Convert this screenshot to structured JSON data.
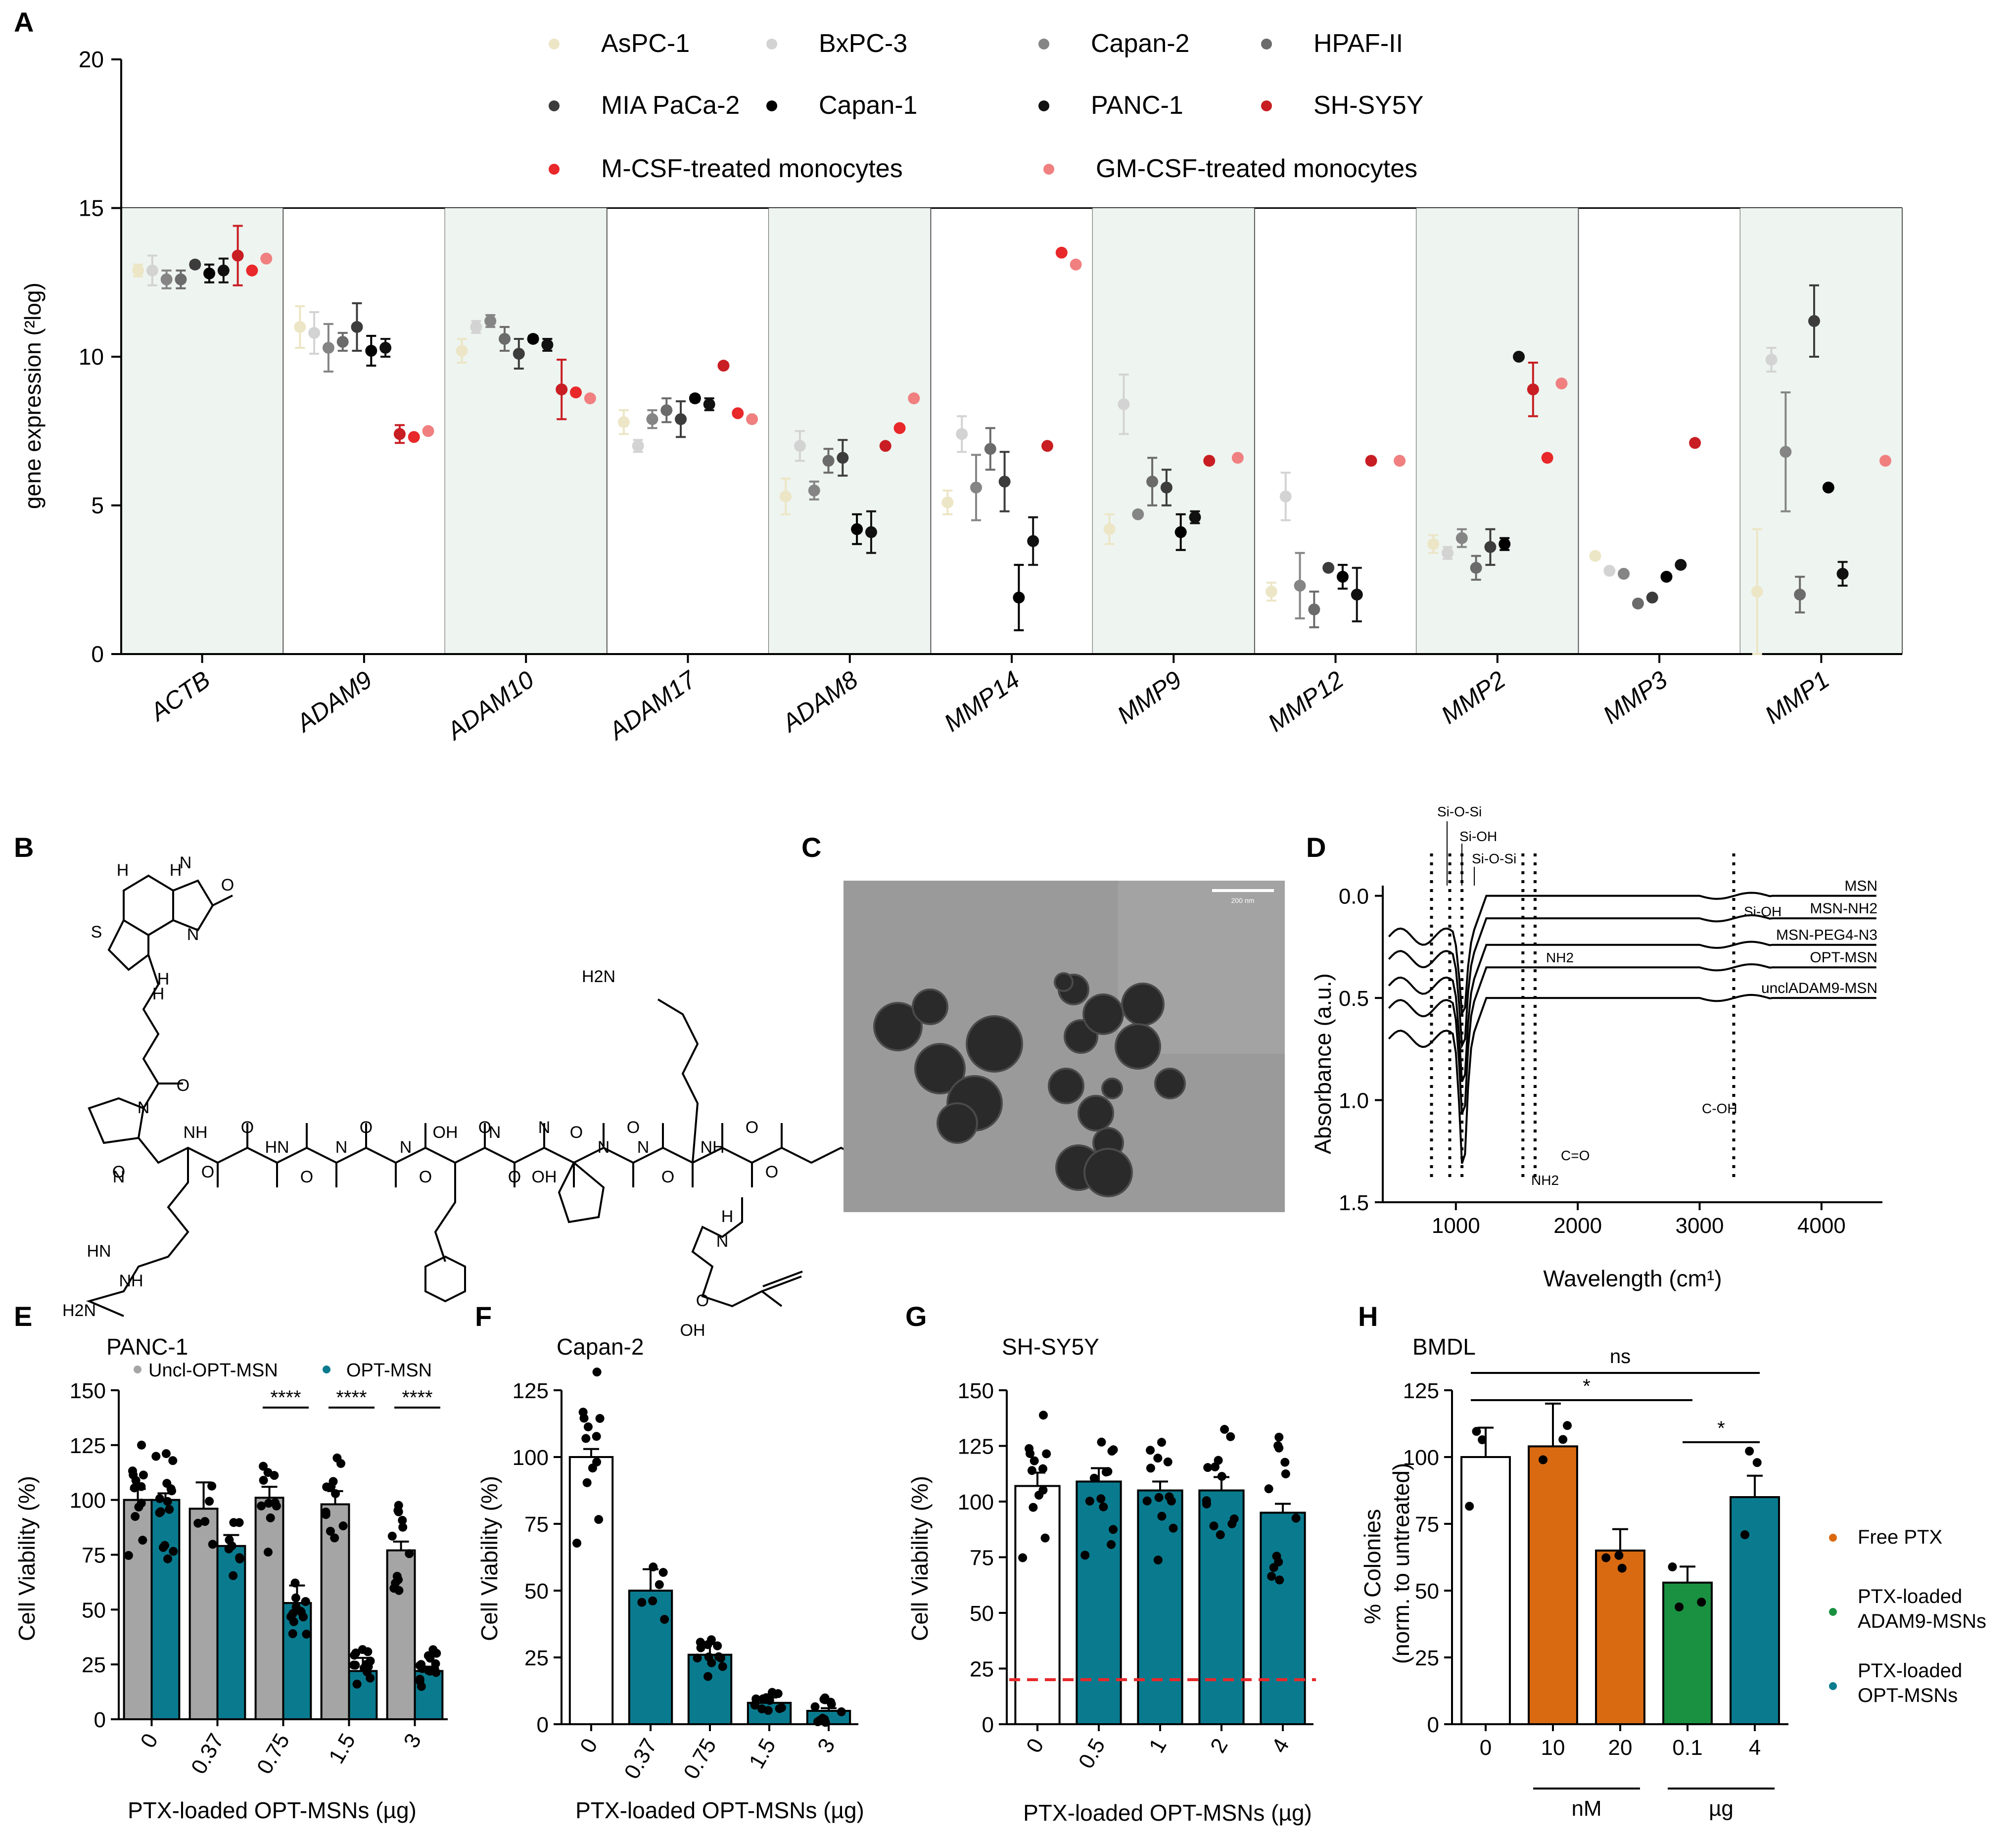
{
  "panel_labels": [
    "A",
    "B",
    "C",
    "D",
    "E",
    "F",
    "G",
    "H"
  ],
  "colors": {
    "AsPC-1": "#ece6c6",
    "BxPC-3": "#d3d3d3",
    "Capan-1": "#000000",
    "Capan-2": "#858585",
    "HPAF-II": "#6b6b6b",
    "MIA PaCa-2": "#3c3c3c",
    "PANC-1": "#111111",
    "SH-SY5Y": "#c81e23",
    "M-CSF-treated monocytes": "#e8282a",
    "GM-CSF-treated monocytes": "#f08080",
    "gray_bar": "#a5a5a5",
    "teal": "#0a7b8f",
    "orange": "#d96a12",
    "green": "#1a9140",
    "shade": "#eef4f0",
    "red_dash": "#e8282a"
  },
  "chart_data": [
    {
      "id": "A",
      "type": "scatter",
      "title": "",
      "ylabel": "gene expression (²log)",
      "xlabel": "",
      "ylim": [
        0,
        20
      ],
      "yticks": [
        0,
        5,
        10,
        15,
        20
      ],
      "categories": [
        "ACTB",
        "ADAM9",
        "ADAM10",
        "ADAM17",
        "ADAM8",
        "MMP14",
        "MMP9",
        "MMP12",
        "MMP2",
        "MMP3",
        "MMP1"
      ],
      "shaded_categories": [
        "ACTB",
        "ADAM10",
        "ADAM8",
        "MMP9",
        "MMP2",
        "MMP1"
      ],
      "legend_placement": "top",
      "series": [
        {
          "name": "AsPC-1",
          "values": [
            12.9,
            11.0,
            10.2,
            7.8,
            5.3,
            5.1,
            4.2,
            2.1,
            3.7,
            3.3,
            2.1
          ],
          "err": [
            0.2,
            0.7,
            0.4,
            0.4,
            0.6,
            0.4,
            0.5,
            0.3,
            0.3,
            0,
            2.1
          ]
        },
        {
          "name": "BxPC-3",
          "values": [
            12.9,
            10.8,
            11.0,
            7.0,
            7.0,
            7.4,
            8.4,
            5.3,
            3.4,
            2.8,
            9.9
          ],
          "err": [
            0.5,
            0.7,
            0.2,
            0.2,
            0.5,
            0.6,
            1.0,
            0.8,
            0.2,
            0,
            0.4
          ]
        },
        {
          "name": "Capan-2",
          "values": [
            12.6,
            10.3,
            11.2,
            7.9,
            5.5,
            5.6,
            4.7,
            2.3,
            3.9,
            2.7,
            6.8
          ],
          "err": [
            0.3,
            0.8,
            0.2,
            0.3,
            0.3,
            1.1,
            0,
            1.1,
            0.3,
            0,
            2.0
          ]
        },
        {
          "name": "HPAF-II",
          "values": [
            12.6,
            10.5,
            10.6,
            8.2,
            6.5,
            6.9,
            5.8,
            1.5,
            2.9,
            1.7,
            2.0
          ],
          "err": [
            0.3,
            0.3,
            0.4,
            0.4,
            0.4,
            0.7,
            0.8,
            0.6,
            0.4,
            0,
            0.6
          ]
        },
        {
          "name": "MIA PaCa-2",
          "values": [
            13.1,
            11.0,
            10.1,
            7.9,
            6.6,
            5.8,
            5.6,
            2.9,
            3.6,
            1.9,
            11.2
          ],
          "err": [
            0.1,
            0.8,
            0.5,
            0.6,
            0.6,
            1.0,
            0.6,
            0,
            0.6,
            0,
            1.2
          ]
        },
        {
          "name": "Capan-1",
          "values": [
            12.8,
            10.2,
            10.6,
            8.6,
            4.2,
            1.9,
            4.1,
            2.6,
            3.7,
            2.6,
            5.6
          ],
          "err": [
            0.3,
            0.5,
            0.1,
            0.1,
            0.5,
            1.1,
            0.6,
            0.4,
            0.2,
            0,
            0
          ]
        },
        {
          "name": "PANC-1",
          "values": [
            12.9,
            10.3,
            10.4,
            8.4,
            4.1,
            3.8,
            4.6,
            2.0,
            10.0,
            3.0,
            2.7
          ],
          "err": [
            0.4,
            0.3,
            0.2,
            0.2,
            0.7,
            0.8,
            0.2,
            0.9,
            0,
            0,
            0.4
          ]
        },
        {
          "name": "SH-SY5Y",
          "values": [
            13.4,
            7.4,
            8.9,
            9.7,
            7.0,
            7.0,
            6.5,
            6.5,
            8.9,
            7.1,
            null
          ],
          "err": [
            1.0,
            0.3,
            1.0,
            0,
            0,
            0,
            0,
            0,
            0.9,
            0,
            0
          ]
        },
        {
          "name": "M-CSF-treated monocytes",
          "values": [
            12.9,
            7.3,
            8.8,
            8.1,
            7.6,
            13.5,
            null,
            null,
            6.6,
            null,
            null
          ],
          "err": [
            0,
            0,
            0,
            0,
            0,
            0,
            0,
            0,
            0,
            0,
            0
          ]
        },
        {
          "name": "GM-CSF-treated monocytes",
          "values": [
            13.3,
            7.5,
            8.6,
            7.9,
            8.6,
            13.1,
            6.6,
            6.5,
            9.1,
            null,
            6.5
          ],
          "err": [
            0,
            0,
            0,
            0,
            0,
            0,
            0,
            0,
            0,
            0,
            0
          ]
        }
      ]
    },
    {
      "id": "D",
      "type": "line",
      "xlabel": "Wavelength (cm¹)",
      "ylabel": "Absorbance (a.u.)",
      "xlim": [
        400,
        4500
      ],
      "ylim": [
        1.5,
        -0.05
      ],
      "xticks": [
        1000,
        2000,
        3000,
        4000
      ],
      "yticks": [
        0.0,
        0.5,
        1.0,
        1.5
      ],
      "y_tick_labels": [
        "0.0",
        "0.5",
        "1.0",
        "1.5"
      ],
      "series": [
        {
          "name": "MSN",
          "offset": 0.0
        },
        {
          "name": "MSN-NH2",
          "offset": 0.11
        },
        {
          "name": "MSN-PEG4-N3",
          "offset": 0.24
        },
        {
          "name": "OPT-MSN",
          "offset": 0.35
        },
        {
          "name": "unclADAM9-MSN",
          "offset": 0.5
        }
      ],
      "dotted_x": [
        800,
        950,
        1050,
        1550,
        1650,
        3280
      ],
      "annotations": [
        "Si-O-Si",
        "Si-OH",
        "Si-O-Si",
        "NH2",
        "Si-OH",
        "C-OH",
        "C=O",
        "NH2"
      ]
    },
    {
      "id": "E",
      "type": "bar",
      "title": "PANC-1",
      "xlabel": "PTX-loaded OPT-MSNs (µg)",
      "ylabel": "Cell Viability (%)",
      "ylim": [
        0,
        150
      ],
      "yticks": [
        0,
        25,
        50,
        75,
        100,
        125,
        150
      ],
      "categories": [
        "0",
        "0.37",
        "0.75",
        "1.5",
        "3"
      ],
      "legend_placement": "top-right",
      "series": [
        {
          "name": "Uncl-OPT-MSN",
          "values": [
            100,
            96,
            101,
            98,
            77
          ],
          "err": [
            5,
            12,
            5,
            6,
            4
          ]
        },
        {
          "name": "OPT-MSN",
          "values": [
            100,
            79,
            53,
            22,
            22
          ],
          "err": [
            3,
            5,
            8,
            6,
            2
          ]
        }
      ],
      "significance": [
        "****",
        "****",
        "****"
      ]
    },
    {
      "id": "F",
      "type": "bar",
      "title": "Capan-2",
      "xlabel": "PTX-loaded OPT-MSNs (µg)",
      "ylabel": "Cell Viability (%)",
      "ylim": [
        0,
        125
      ],
      "yticks": [
        0,
        25,
        50,
        75,
        100,
        125
      ],
      "categories": [
        "0",
        "0.37",
        "0.75",
        "1.5",
        "3"
      ],
      "values": [
        100,
        50,
        26,
        8,
        5
      ],
      "err": [
        3,
        8,
        4,
        2,
        1
      ]
    },
    {
      "id": "G",
      "type": "bar",
      "title": "SH-SY5Y",
      "xlabel": "PTX-loaded OPT-MSNs (µg)",
      "ylabel": "Cell Viability (%)",
      "ylim": [
        0,
        150
      ],
      "yticks": [
        0,
        25,
        50,
        75,
        100,
        125,
        150
      ],
      "categories": [
        "0",
        "0.5",
        "1",
        "2",
        "4"
      ],
      "values": [
        107,
        109,
        105,
        105,
        95
      ],
      "err": [
        6,
        6,
        4,
        6,
        4
      ],
      "reference_line": 20
    },
    {
      "id": "H",
      "type": "bar",
      "title": "BMDL",
      "xlabel": "",
      "ylabel": "% Colonies\n(norm. to untreated)",
      "ylim": [
        0,
        125
      ],
      "yticks": [
        0,
        25,
        50,
        75,
        100,
        125
      ],
      "categories": [
        "0",
        "10",
        "20",
        "0.1",
        "4"
      ],
      "groups": [
        "nM",
        "µg"
      ],
      "values": [
        100,
        104,
        65,
        53,
        85
      ],
      "err": [
        11,
        16,
        8,
        6,
        8
      ],
      "legend_placement": "right",
      "legend": [
        "Free PTX",
        "PTX-loaded ADAM9-MSNs",
        "PTX-loaded OPT-MSNs"
      ],
      "significance": [
        "ns",
        "*",
        "*"
      ]
    }
  ],
  "panel_b": {
    "labels": [
      "H",
      "H",
      "N",
      "N",
      "O",
      "S",
      "H",
      "H",
      "N",
      "O",
      "O",
      "O",
      "NH",
      "O",
      "O",
      "HN",
      "O",
      "N",
      "O",
      "N",
      "O",
      "OH",
      "N",
      "O",
      "N",
      "O",
      "OH",
      "N",
      "O",
      "N",
      "O",
      "O",
      "NH",
      "O",
      "H",
      "N",
      "O",
      "OH",
      "HN",
      "NH",
      "N",
      "H2N",
      "H2N"
    ]
  },
  "panel_c": {
    "scale_bar_label": "200 nm"
  }
}
